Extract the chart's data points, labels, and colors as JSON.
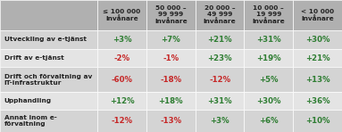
{
  "col_headers": [
    "≤ 100 000\nInvånare",
    "50 000 –\n99 999\nInvånare",
    "20 000 –\n49 999\nInvånare",
    "10 000 –\n19 999\nInvånare",
    "< 10 000\nInvånare"
  ],
  "row_headers": [
    "Utveckling av e-tjänst",
    "Drift av e-tjänst",
    "Drift och förvaltning av\nIT-infrastruktur",
    "Upphandling",
    "Annat inom e-\nförvaltning"
  ],
  "values": [
    [
      "+3%",
      "+7%",
      "+21%",
      "+31%",
      "+30%"
    ],
    [
      "-2%",
      "-1%",
      "+23%",
      "+19%",
      "+21%"
    ],
    [
      "-60%",
      "-18%",
      "-12%",
      "+5%",
      "+13%"
    ],
    [
      "+12%",
      "+18%",
      "+31%",
      "+30%",
      "+36%"
    ],
    [
      "-12%",
      "-13%",
      "+3%",
      "+6%",
      "+10%"
    ]
  ],
  "colors": [
    [
      "green",
      "green",
      "green",
      "green",
      "green"
    ],
    [
      "red",
      "red",
      "green",
      "green",
      "green"
    ],
    [
      "red",
      "red",
      "red",
      "green",
      "green"
    ],
    [
      "green",
      "green",
      "green",
      "green",
      "green"
    ],
    [
      "red",
      "red",
      "green",
      "green",
      "green"
    ]
  ],
  "header_bg": "#b0b0b0",
  "row_bg_odd": "#d4d4d4",
  "row_bg_even": "#e4e4e4",
  "text_color_dark": "#222222",
  "green_color": "#2e7d32",
  "red_color": "#c62828",
  "figsize": [
    3.83,
    1.48
  ],
  "dpi": 100
}
